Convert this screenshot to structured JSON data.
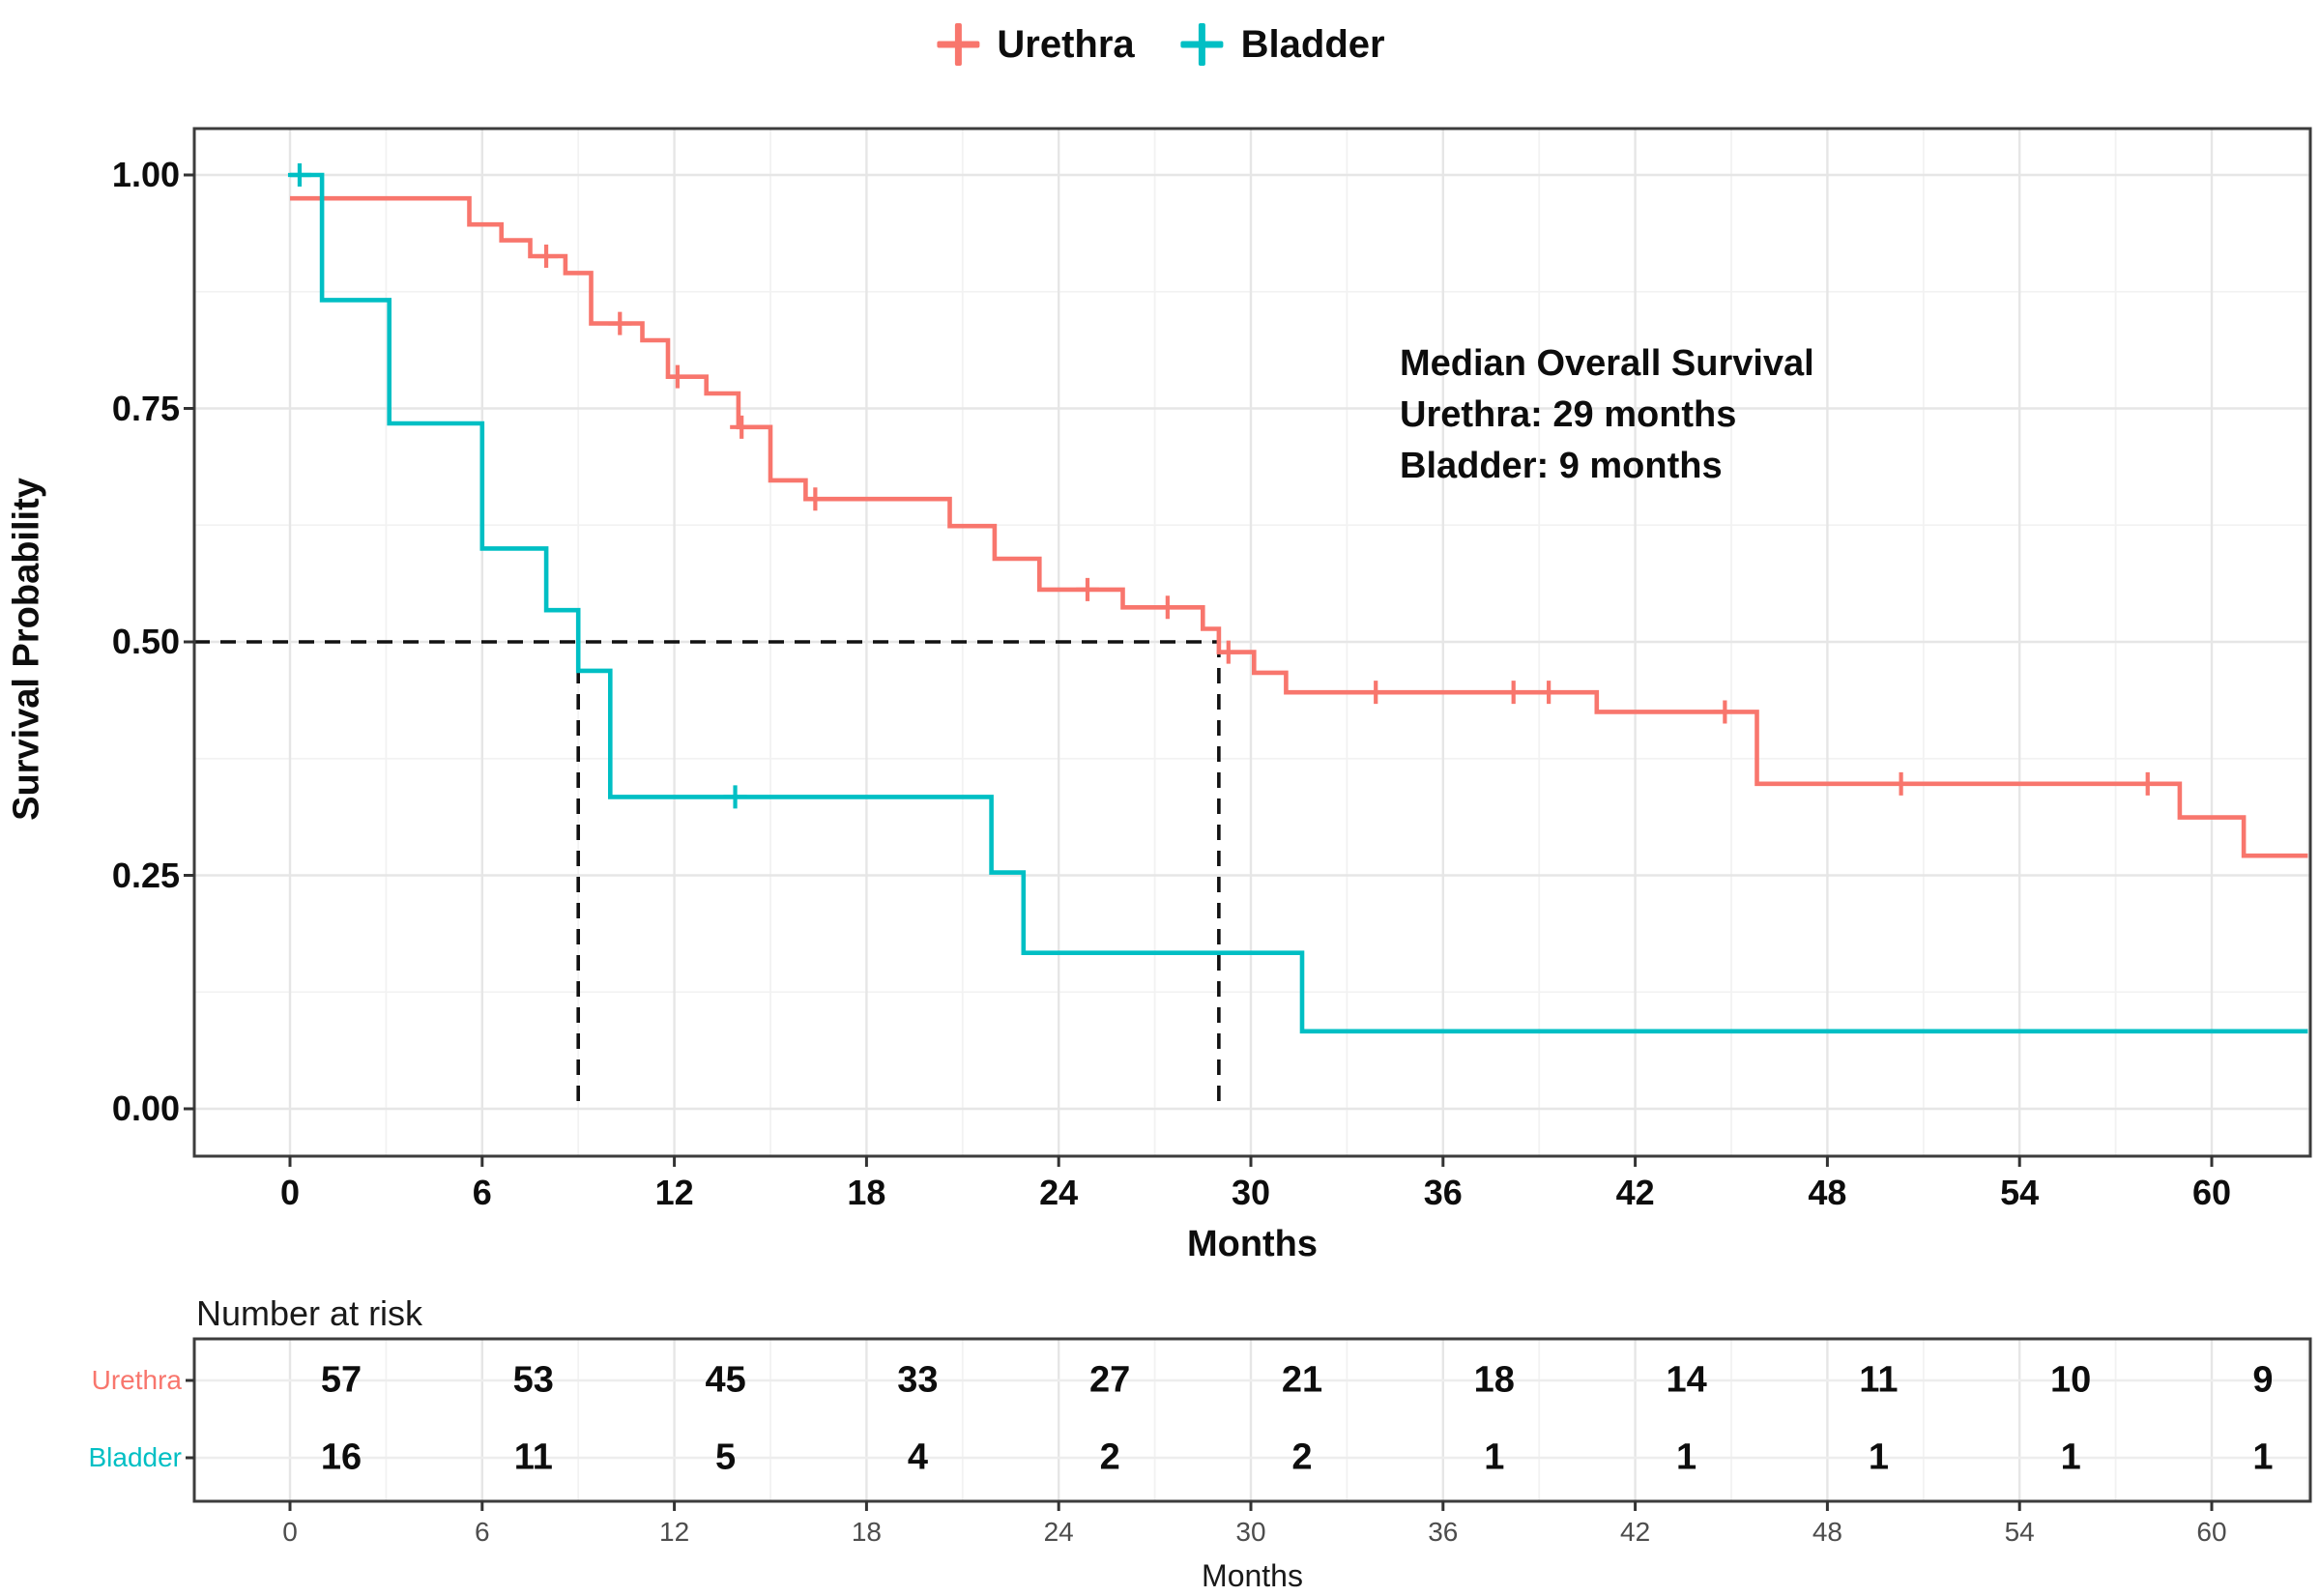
{
  "figure": {
    "legend": {
      "items": [
        {
          "label": "Urethra",
          "color": "#F8766D",
          "symbol": "plus-censor-mark"
        },
        {
          "label": "Bladder",
          "color": "#00BFC4",
          "symbol": "plus-censor-mark"
        }
      ]
    },
    "annotation": {
      "line1": "Median Overall Survival",
      "line2": "Urethra: 29 months",
      "line3": "Bladder: 9 months"
    }
  },
  "chart_data": {
    "type": "line",
    "subtype": "kaplan-meier-step-curve",
    "title": "",
    "xlabel": "Months",
    "ylabel": "Survival Probability",
    "xlim": [
      0,
      63
    ],
    "ylim": [
      0,
      1
    ],
    "xticks": [
      0,
      6,
      12,
      18,
      24,
      30,
      36,
      42,
      48,
      54,
      60
    ],
    "yticks": [
      {
        "value": 1.0,
        "label": "1.00"
      },
      {
        "value": 0.75,
        "label": "0.75"
      },
      {
        "value": 0.5,
        "label": "0.50"
      },
      {
        "value": 0.25,
        "label": "0.25"
      },
      {
        "value": 0.0,
        "label": "0.00"
      }
    ],
    "grid": "on",
    "legend_position": "top-center",
    "median_reference": {
      "survival_level": 0.5,
      "horizontal_line_from_month": 0,
      "horizontal_line_to_month": 29,
      "vertical_lines_at_months": [
        9,
        29
      ]
    },
    "series": [
      {
        "name": "Urethra",
        "color": "#F8766D",
        "median_months": 29,
        "steps": [
          [
            0,
            0.975
          ],
          [
            5.6,
            0.947
          ],
          [
            6.6,
            0.93
          ],
          [
            7.5,
            0.913
          ],
          [
            8.6,
            0.895
          ],
          [
            9.4,
            0.841
          ],
          [
            11.0,
            0.823
          ],
          [
            11.8,
            0.784
          ],
          [
            13.0,
            0.766
          ],
          [
            14.0,
            0.73
          ],
          [
            15.0,
            0.673
          ],
          [
            16.1,
            0.653
          ],
          [
            20.6,
            0.624
          ],
          [
            22.0,
            0.589
          ],
          [
            23.4,
            0.556
          ],
          [
            26.0,
            0.537
          ],
          [
            28.5,
            0.514
          ],
          [
            29.0,
            0.489
          ],
          [
            30.1,
            0.467
          ],
          [
            31.1,
            0.446
          ],
          [
            40.8,
            0.425
          ],
          [
            45.8,
            0.348
          ],
          [
            59.0,
            0.312
          ],
          [
            61.0,
            0.271
          ],
          [
            63,
            0.271
          ]
        ],
        "censor_marks": [
          [
            8.0,
            0.913
          ],
          [
            10.3,
            0.841
          ],
          [
            12.1,
            0.784
          ],
          [
            14.1,
            0.73
          ],
          [
            16.4,
            0.653
          ],
          [
            24.9,
            0.556
          ],
          [
            27.4,
            0.537
          ],
          [
            29.3,
            0.489
          ],
          [
            33.9,
            0.446
          ],
          [
            38.2,
            0.446
          ],
          [
            39.3,
            0.446
          ],
          [
            44.8,
            0.425
          ],
          [
            50.3,
            0.348
          ],
          [
            58.0,
            0.348
          ]
        ]
      },
      {
        "name": "Bladder",
        "color": "#00BFC4",
        "median_months": 9,
        "steps": [
          [
            0,
            1.0
          ],
          [
            1.0,
            0.866
          ],
          [
            3.1,
            0.734
          ],
          [
            6.0,
            0.6
          ],
          [
            8.0,
            0.534
          ],
          [
            9.0,
            0.469
          ],
          [
            10.0,
            0.334
          ],
          [
            21.9,
            0.253
          ],
          [
            22.9,
            0.167
          ],
          [
            31.6,
            0.083
          ],
          [
            63,
            0.083
          ]
        ],
        "censor_marks": [
          [
            0.3,
            1.0
          ],
          [
            13.9,
            0.334
          ]
        ]
      }
    ]
  },
  "risk_table": {
    "title": "Number at risk",
    "xlabel": "Months",
    "times": [
      0,
      6,
      12,
      18,
      24,
      30,
      36,
      42,
      48,
      54,
      60
    ],
    "rows": [
      {
        "name": "Urethra",
        "color": "#F8766D",
        "counts": [
          57,
          53,
          45,
          33,
          27,
          21,
          18,
          14,
          11,
          10,
          9
        ]
      },
      {
        "name": "Bladder",
        "color": "#00BFC4",
        "counts": [
          16,
          11,
          5,
          4,
          2,
          2,
          1,
          1,
          1,
          1,
          1
        ]
      }
    ]
  }
}
